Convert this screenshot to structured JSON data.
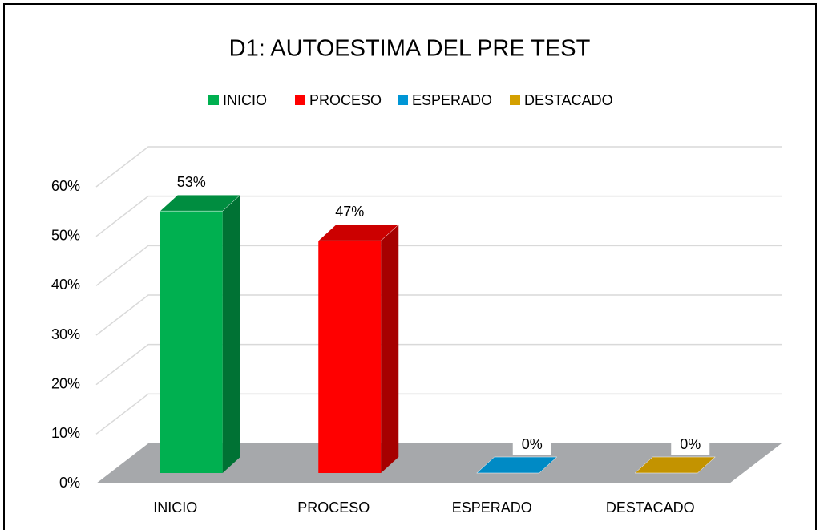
{
  "chart_data": {
    "type": "bar3d",
    "title": "D1: AUTOESTIMA DEL PRE TEST",
    "categories": [
      "INICIO",
      "PROCESO",
      "ESPERADO",
      "DESTACADO"
    ],
    "values": [
      53,
      47,
      0,
      0
    ],
    "value_labels": [
      "53%",
      "47%",
      "0%",
      "0%"
    ],
    "colors": [
      "#00b050",
      "#ff0000",
      "#0096d6",
      "#d4a000"
    ],
    "ylim": [
      0,
      60
    ],
    "yticks": [
      {
        "value": 0,
        "label": "0%"
      },
      {
        "value": 10,
        "label": "10%"
      },
      {
        "value": 20,
        "label": "20%"
      },
      {
        "value": 30,
        "label": "30%"
      },
      {
        "value": 40,
        "label": "40%"
      },
      {
        "value": 50,
        "label": "50%"
      },
      {
        "value": 60,
        "label": "60%"
      }
    ],
    "grid": true,
    "legend": "top"
  }
}
